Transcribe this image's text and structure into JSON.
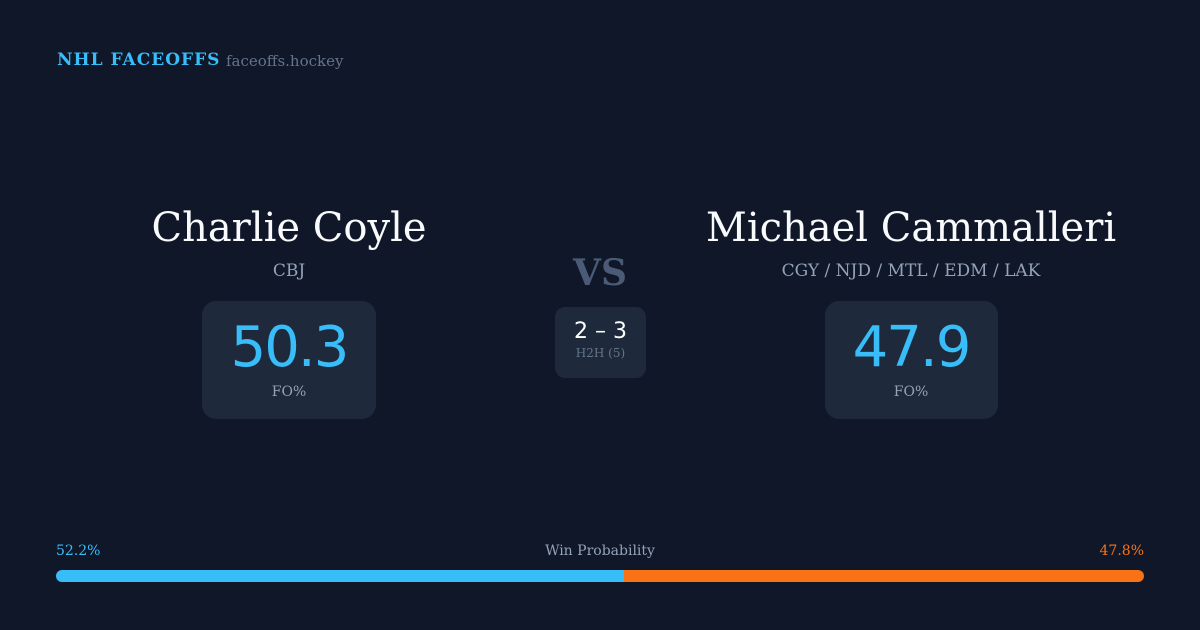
{
  "brand": "NHL FACEOFFS",
  "site": "faceoffs.hockey",
  "left": {
    "name": "Charlie Coyle",
    "team": "CBJ",
    "fo": "50.3",
    "fo_label": "FO%"
  },
  "right": {
    "name": "Michael Cammalleri",
    "team": "CGY / NJD / MTL / EDM / LAK",
    "fo": "47.9",
    "fo_label": "FO%"
  },
  "vs": "VS",
  "h2h": {
    "score": "2 – 3",
    "label": "H2H (5)"
  },
  "win": {
    "label": "Win Probability",
    "left": "52.2%",
    "right": "47.8%",
    "left_value": 52.2,
    "right_value": 47.8,
    "left_color": "#38bdf8",
    "right_color": "#f97316"
  }
}
